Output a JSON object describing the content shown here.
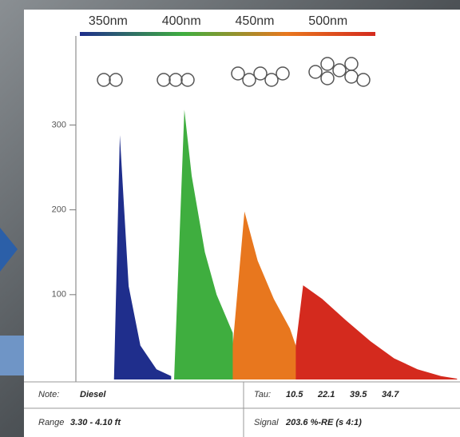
{
  "chart_data": {
    "type": "area",
    "xlim": [
      328,
      590
    ],
    "xticks": [
      {
        "value": 350,
        "label": "350nm"
      },
      {
        "value": 400,
        "label": "400nm"
      },
      {
        "value": 450,
        "label": "450nm"
      },
      {
        "value": 500,
        "label": "500nm"
      }
    ],
    "ylim": [
      0,
      405
    ],
    "yticks": [
      100,
      200,
      300
    ],
    "series": [
      {
        "color": "#1f2e8c",
        "x": [
          354,
          358,
          364,
          372,
          383,
          393
        ],
        "values": [
          0,
          288,
          110,
          40,
          12,
          4
        ]
      },
      {
        "color": "#3fae3f",
        "x": [
          395,
          402,
          407,
          416,
          424,
          435,
          436
        ],
        "values": [
          0,
          318,
          240,
          150,
          100,
          55,
          0
        ]
      },
      {
        "color": "#e8771e",
        "x": [
          435,
          443,
          452,
          463,
          474,
          478,
          479
        ],
        "values": [
          40,
          198,
          140,
          95,
          60,
          40,
          0
        ]
      },
      {
        "color": "#d42a1e",
        "x": [
          478,
          483,
          496,
          512,
          529,
          545,
          561,
          577,
          588
        ],
        "values": [
          40,
          111,
          95,
          70,
          45,
          25,
          12,
          4,
          1
        ]
      }
    ]
  },
  "footer": {
    "note_label": "Note:",
    "note": "Diesel",
    "tau_label": "Tau:",
    "tau": [
      "10.5",
      "22.1",
      "39.5",
      "34.7"
    ],
    "range_label": "Range",
    "range": "3.30 - 4.10 ft",
    "signal_label": "Signal",
    "signal": "203.6 %-RE (s 4:1)"
  }
}
